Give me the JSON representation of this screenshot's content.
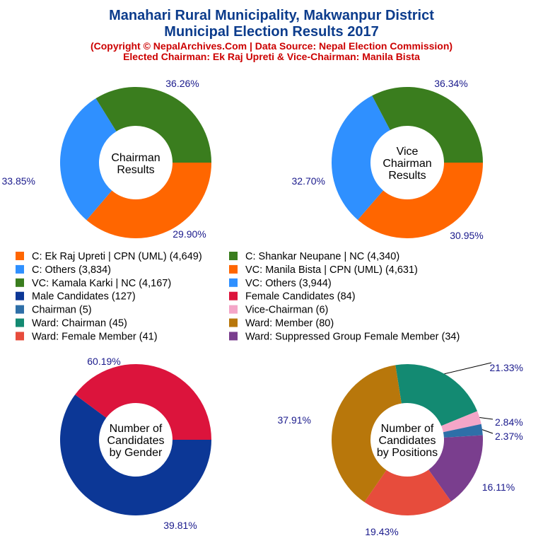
{
  "header": {
    "title_line1": "Manahari Rural Municipality, Makwanpur District",
    "title_line2": "Municipal Election Results 2017",
    "subtitle_line1": "(Copyright © NepalArchives.Com | Data Source: Nepal Election Commission)",
    "subtitle_line2": "Elected Chairman: Ek Raj Upreti & Vice-Chairman: Manila Bista"
  },
  "legend": [
    {
      "label": "C: Ek Raj Upreti | CPN (UML) (4,649)",
      "color": "#ff6600"
    },
    {
      "label": "C: Shankar Neupane | NC (4,340)",
      "color": "#3a7d1e"
    },
    {
      "label": "C: Others (3,834)",
      "color": "#2f90ff"
    },
    {
      "label": "VC: Manila Bista | CPN (UML) (4,631)",
      "color": "#ff6600"
    },
    {
      "label": "VC: Kamala Karki | NC (4,167)",
      "color": "#3a7d1e"
    },
    {
      "label": "VC: Others (3,944)",
      "color": "#2f90ff"
    },
    {
      "label": "Male Candidates (127)",
      "color": "#0c3796"
    },
    {
      "label": "Female Candidates (84)",
      "color": "#dc143c"
    },
    {
      "label": "Chairman (5)",
      "color": "#2e6fa8"
    },
    {
      "label": "Vice-Chairman (6)",
      "color": "#f4a6c8"
    },
    {
      "label": "Ward: Chairman (45)",
      "color": "#138a72"
    },
    {
      "label": "Ward: Member (80)",
      "color": "#b8770b"
    },
    {
      "label": "Ward: Female Member (41)",
      "color": "#e74c3c"
    },
    {
      "label": "Ward: Suppressed Group Female Member (34)",
      "color": "#7a3e8e"
    }
  ],
  "chart_data": [
    {
      "type": "pie",
      "center_label": [
        "Chairman",
        "Results"
      ],
      "slices": [
        {
          "name": "C: Ek Raj Upreti | CPN (UML)",
          "value": 4649,
          "percent": "36.26%",
          "color": "#ff6600"
        },
        {
          "name": "C: Others",
          "value": 3834,
          "percent": "29.90%",
          "color": "#2f90ff"
        },
        {
          "name": "C: Shankar Neupane | NC",
          "value": 4340,
          "percent": "33.85%",
          "color": "#3a7d1e"
        }
      ]
    },
    {
      "type": "pie",
      "center_label": [
        "Vice",
        "Chairman",
        "Results"
      ],
      "slices": [
        {
          "name": "VC: Manila Bista | CPN (UML)",
          "value": 4631,
          "percent": "36.34%",
          "color": "#ff6600"
        },
        {
          "name": "VC: Others",
          "value": 3944,
          "percent": "30.95%",
          "color": "#2f90ff"
        },
        {
          "name": "VC: Kamala Karki | NC",
          "value": 4167,
          "percent": "32.70%",
          "color": "#3a7d1e"
        }
      ]
    },
    {
      "type": "pie",
      "center_label": [
        "Number of",
        "Candidates",
        "by Gender"
      ],
      "slices": [
        {
          "name": "Male Candidates",
          "value": 127,
          "percent": "60.19%",
          "color": "#0c3796"
        },
        {
          "name": "Female Candidates",
          "value": 84,
          "percent": "39.81%",
          "color": "#dc143c"
        }
      ]
    },
    {
      "type": "pie",
      "center_label": [
        "Number of",
        "Candidates",
        "by Positions"
      ],
      "slices": [
        {
          "name": "Ward: Chairman",
          "value": 45,
          "percent": "21.33%",
          "color": "#138a72"
        },
        {
          "name": "Vice-Chairman",
          "value": 6,
          "percent": "2.84%",
          "color": "#f4a6c8"
        },
        {
          "name": "Chairman",
          "value": 5,
          "percent": "2.37%",
          "color": "#2e6fa8"
        },
        {
          "name": "Ward: Suppressed Group Female Member",
          "value": 34,
          "percent": "16.11%",
          "color": "#7a3e8e"
        },
        {
          "name": "Ward: Female Member",
          "value": 41,
          "percent": "19.43%",
          "color": "#e74c3c"
        },
        {
          "name": "Ward: Member",
          "value": 80,
          "percent": "37.91%",
          "color": "#b8770b"
        }
      ]
    }
  ]
}
